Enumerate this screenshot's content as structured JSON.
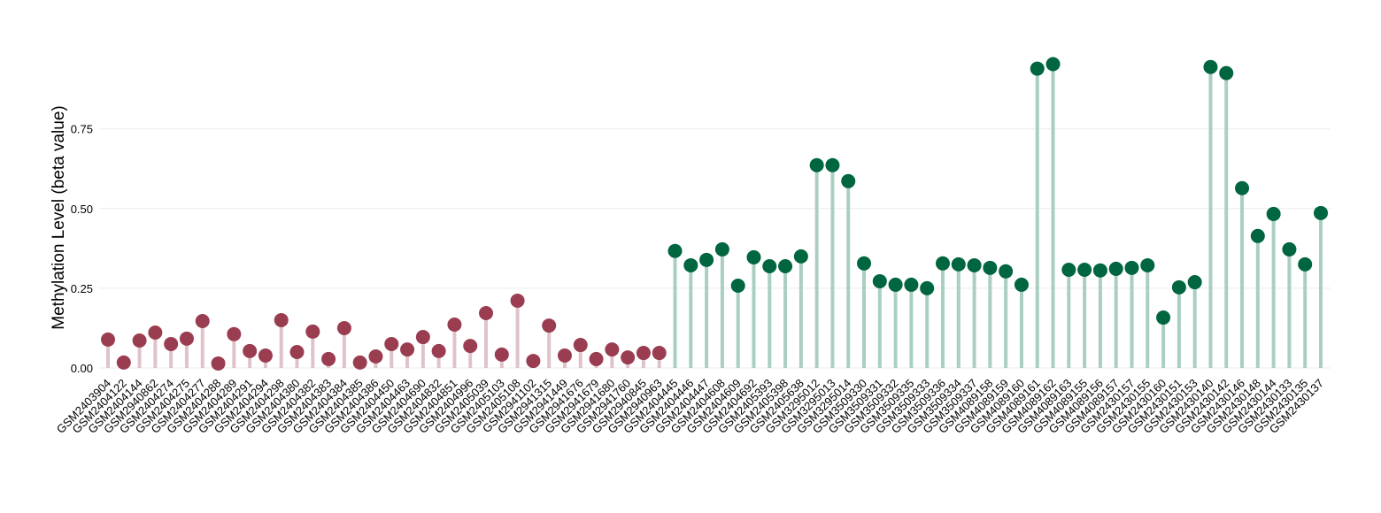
{
  "chart_data": {
    "type": "lollipop",
    "y_label": "Methylation Level (beta value)",
    "categories": [
      "GSM2403904",
      "GSM2404122",
      "GSM2404144",
      "GSM2940862",
      "GSM2404274",
      "GSM2404275",
      "GSM2404277",
      "GSM2404288",
      "GSM2404289",
      "GSM2404291",
      "GSM2404294",
      "GSM2404298",
      "GSM2404380",
      "GSM2404382",
      "GSM2404383",
      "GSM2404384",
      "GSM2404385",
      "GSM2404386",
      "GSM2404450",
      "GSM2404463",
      "GSM2404690",
      "GSM2404832",
      "GSM2404851",
      "GSM2404996",
      "GSM2405039",
      "GSM2405103",
      "GSM2405108",
      "GSM2941102",
      "GSM2941315",
      "GSM2941449",
      "GSM2941676",
      "GSM2941679",
      "GSM2941680",
      "GSM2941760",
      "GSM2940845",
      "GSM2940963",
      "GSM2404445",
      "GSM2404446",
      "GSM2404447",
      "GSM2404608",
      "GSM2404609",
      "GSM2404692",
      "GSM2405393",
      "GSM2405398",
      "GSM2405638",
      "GSM3295012",
      "GSM3295013",
      "GSM3295014",
      "GSM3509330",
      "GSM3509331",
      "GSM3509332",
      "GSM3509335",
      "GSM3509333",
      "GSM3509336",
      "GSM3509334",
      "GSM3509337",
      "GSM4089158",
      "GSM4089159",
      "GSM4089160",
      "GSM4089161",
      "GSM4089162",
      "GSM4089163",
      "GSM4089155",
      "GSM4089156",
      "GSM4089157",
      "GSM2430157",
      "GSM2430155",
      "GSM2430160",
      "GSM2430151",
      "GSM2430153",
      "GSM2430140",
      "GSM2430142",
      "GSM2430146",
      "GSM2430148",
      "GSM2430144",
      "GSM2430133",
      "GSM2430135",
      "GSM2430137"
    ],
    "series": [
      {
        "color": "#9b3d50",
        "stem_color": "#e0c3ca",
        "values": [
          0.089,
          0.017,
          0.086,
          0.111,
          0.075,
          0.092,
          0.147,
          0.014,
          0.106,
          0.053,
          0.039,
          0.15,
          0.05,
          0.114,
          0.028,
          0.125,
          0.017,
          0.036,
          0.075,
          0.058,
          0.097,
          0.053,
          0.136,
          0.069,
          0.172,
          0.042,
          0.211,
          0.022,
          0.133,
          0.039,
          0.072,
          0.028,
          0.058,
          0.033,
          0.047,
          0.047,
          null,
          null,
          null,
          null,
          null,
          null,
          null,
          null,
          null,
          null,
          null,
          null,
          null,
          null,
          null,
          null,
          null,
          null,
          null,
          null,
          null,
          null,
          null,
          null,
          null,
          null,
          null,
          null,
          null,
          null,
          null,
          null,
          null,
          null,
          null,
          null,
          null,
          null,
          null,
          null,
          null,
          null
        ]
      },
      {
        "color": "#00663f",
        "stem_color": "#aacfc1",
        "values": [
          null,
          null,
          null,
          null,
          null,
          null,
          null,
          null,
          null,
          null,
          null,
          null,
          null,
          null,
          null,
          null,
          null,
          null,
          null,
          null,
          null,
          null,
          null,
          null,
          null,
          null,
          null,
          null,
          null,
          null,
          null,
          null,
          null,
          null,
          null,
          null,
          0.367,
          0.322,
          0.339,
          0.372,
          0.258,
          0.347,
          0.319,
          0.319,
          0.35,
          0.636,
          0.636,
          0.586,
          0.328,
          0.272,
          0.261,
          0.261,
          0.25,
          0.328,
          0.325,
          0.322,
          0.314,
          0.303,
          0.261,
          0.939,
          0.953,
          0.308,
          0.308,
          0.306,
          0.311,
          0.314,
          0.322,
          0.158,
          0.253,
          0.269,
          0.944,
          0.925,
          0.564,
          0.414,
          0.483,
          0.372,
          0.325,
          0.486
        ]
      }
    ],
    "ylim": [
      0,
      0.96
    ],
    "yticks": [
      {
        "value": 0,
        "label": "0.00"
      },
      {
        "value": 0.25,
        "label": "0.25"
      },
      {
        "value": 0.5,
        "label": "0.50"
      },
      {
        "value": 0.75,
        "label": "0.75"
      }
    ],
    "grid": true
  }
}
